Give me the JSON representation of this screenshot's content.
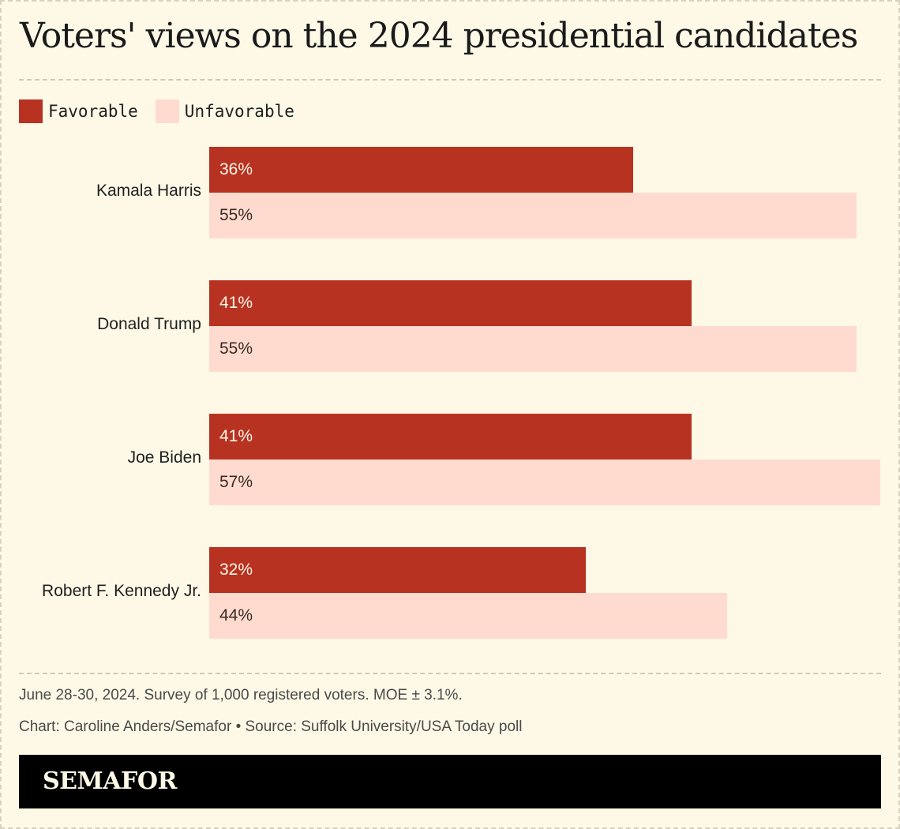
{
  "title": "Voters' views on the 2024 presidential candidates",
  "legend": {
    "favorable": "Favorable",
    "unfavorable": "Unfavorable"
  },
  "colors": {
    "favorable": "#b83222",
    "unfavorable": "#ffdbcf",
    "background": "#fdf9e6"
  },
  "chart_data": {
    "type": "bar",
    "orientation": "horizontal",
    "categories": [
      "Kamala Harris",
      "Donald Trump",
      "Joe Biden",
      "Robert F. Kennedy Jr."
    ],
    "series": [
      {
        "name": "Favorable",
        "values": [
          36,
          41,
          41,
          32
        ],
        "labels": [
          "36%",
          "41%",
          "41%",
          "32%"
        ]
      },
      {
        "name": "Unfavorable",
        "values": [
          55,
          55,
          57,
          44
        ],
        "labels": [
          "55%",
          "55%",
          "57%",
          "44%"
        ]
      }
    ],
    "xlim": [
      0,
      57
    ],
    "grid": false,
    "legend_position": "top-left"
  },
  "notes": {
    "survey": "June 28-30, 2024. Survey of 1,000 registered voters. MOE ± 3.1%.",
    "credit": "Chart: Caroline Anders/Semafor • Source: Suffolk University/USA Today poll"
  },
  "brand": "SEMAFOR"
}
